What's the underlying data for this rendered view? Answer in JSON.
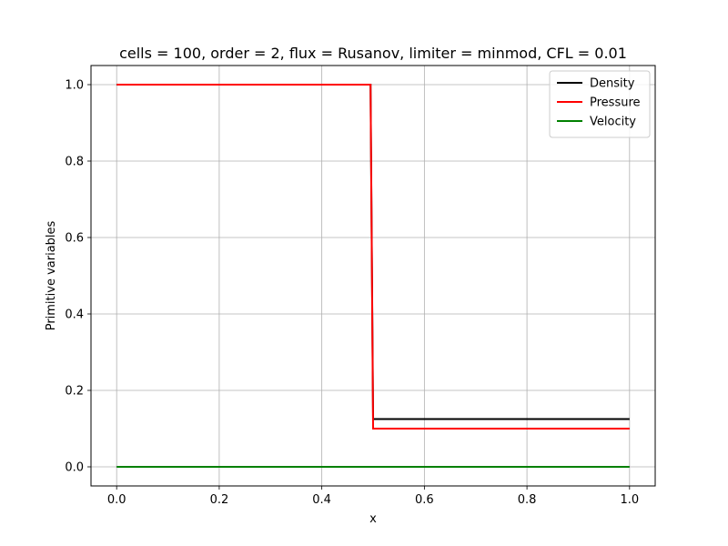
{
  "chart_data": {
    "type": "line",
    "title": "cells = 100, order = 2, flux = Rusanov, limiter = minmod, CFL = 0.01",
    "xlabel": "x",
    "ylabel": "Primitive variables",
    "xlim": [
      -0.05,
      1.05
    ],
    "ylim": [
      -0.05,
      1.05
    ],
    "xticks": [
      0.0,
      0.2,
      0.4,
      0.6,
      0.8,
      1.0
    ],
    "xtick_labels": [
      "0.0",
      "0.2",
      "0.4",
      "0.6",
      "0.8",
      "1.0"
    ],
    "yticks": [
      0.0,
      0.2,
      0.4,
      0.6,
      0.8,
      1.0
    ],
    "ytick_labels": [
      "0.0",
      "0.2",
      "0.4",
      "0.6",
      "0.8",
      "1.0"
    ],
    "grid": true,
    "legend_position": "top-right",
    "series": [
      {
        "name": "Density",
        "color": "#000000",
        "x": [
          0.0,
          0.495,
          0.5,
          1.0
        ],
        "y": [
          1.0,
          1.0,
          0.125,
          0.125
        ]
      },
      {
        "name": "Pressure",
        "color": "#ff0000",
        "x": [
          0.0,
          0.495,
          0.5,
          1.0
        ],
        "y": [
          1.0,
          1.0,
          0.1,
          0.1
        ]
      },
      {
        "name": "Velocity",
        "color": "#008000",
        "x": [
          0.0,
          1.0
        ],
        "y": [
          0.0,
          0.0
        ]
      }
    ]
  }
}
